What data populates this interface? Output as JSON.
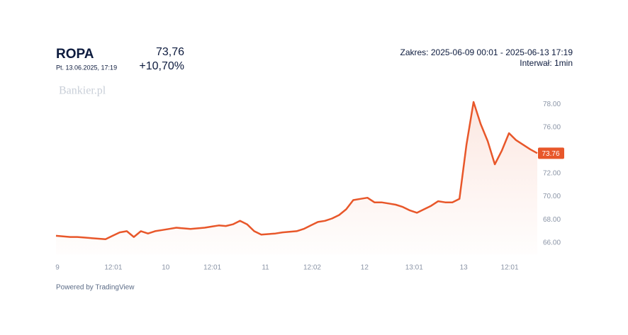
{
  "header": {
    "title": "ROPA",
    "date": "Pt. 13.06.2025, 17:19",
    "price": "73,76",
    "change": "+10,70%",
    "range": "Zakres: 2025-06-09 00:01 - 2025-06-13 17:19",
    "interval": "Interwał: 1min"
  },
  "watermark": "Bankier.pl",
  "footer": "Powered by TradingView",
  "chart_data": {
    "type": "line",
    "series": [
      {
        "color": "#e8572a",
        "values": [
          66.6,
          66.55,
          66.5,
          66.5,
          66.45,
          66.4,
          66.35,
          66.3,
          66.6,
          66.9,
          67.0,
          66.5,
          67.0,
          66.8,
          67.0,
          67.1,
          67.2,
          67.3,
          67.25,
          67.2,
          67.25,
          67.3,
          67.4,
          67.5,
          67.45,
          67.6,
          67.9,
          67.6,
          67.0,
          66.7,
          66.75,
          66.8,
          66.9,
          66.95,
          67.0,
          67.2,
          67.5,
          67.8,
          67.9,
          68.1,
          68.4,
          68.9,
          69.7,
          69.8,
          69.9,
          69.5,
          69.5,
          69.4,
          69.3,
          69.1,
          68.8,
          68.6,
          68.9,
          69.2,
          69.6,
          69.5,
          69.5,
          69.8,
          74.5,
          78.2,
          76.3,
          74.8,
          72.8,
          74.0,
          75.5,
          74.9,
          74.5,
          74.1,
          73.76
        ]
      }
    ],
    "xlim": [
      0,
      68
    ],
    "xticks": [
      {
        "value": 0.2,
        "label": "9"
      },
      {
        "value": 8.1,
        "label": "12:01"
      },
      {
        "value": 15.5,
        "label": "10"
      },
      {
        "value": 22.1,
        "label": "12:01"
      },
      {
        "value": 29.6,
        "label": "11"
      },
      {
        "value": 36.2,
        "label": "12:02"
      },
      {
        "value": 43.6,
        "label": "12"
      },
      {
        "value": 50.6,
        "label": "13:01"
      },
      {
        "value": 57.6,
        "label": "13"
      },
      {
        "value": 64.1,
        "label": "12:01"
      }
    ],
    "ylim": [
      65,
      79
    ],
    "yticks": [
      {
        "value": 66,
        "label": "66.00"
      },
      {
        "value": 68,
        "label": "68.00"
      },
      {
        "value": 70,
        "label": "70.00"
      },
      {
        "value": 72,
        "label": "72.00"
      },
      {
        "value": 76,
        "label": "76.00"
      },
      {
        "value": 78,
        "label": "78.00"
      }
    ],
    "grid": false
  }
}
